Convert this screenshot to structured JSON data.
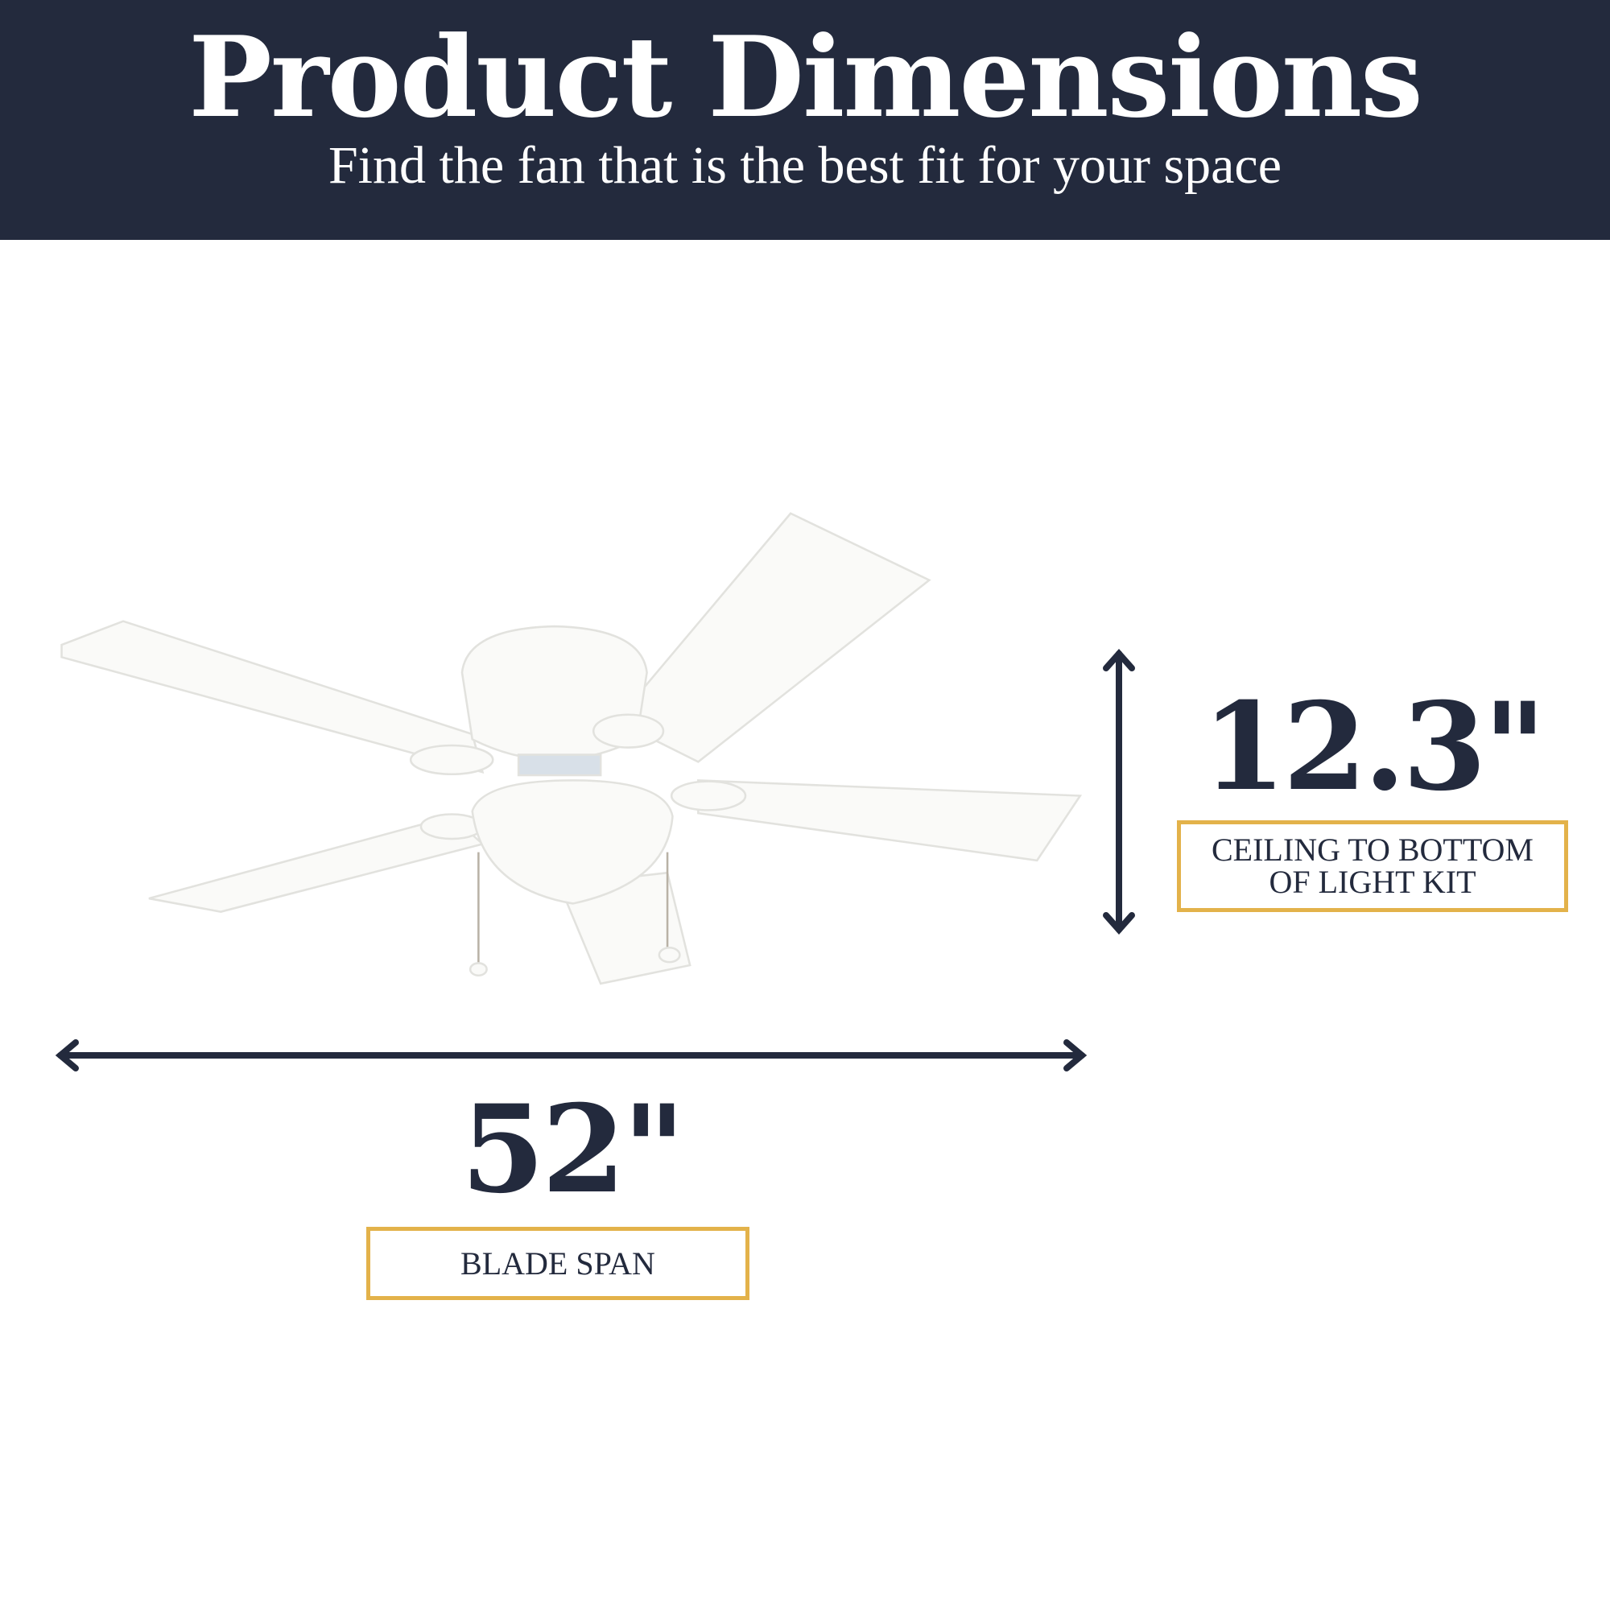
{
  "header": {
    "title": "Product Dimensions",
    "subtitle": "Find the fan that is the best fit for your space"
  },
  "dimensions": {
    "height": {
      "value": "12.3\"",
      "label_line1": "CEILING TO BOTTOM",
      "label_line2": "OF LIGHT KIT"
    },
    "span": {
      "value": "52\"",
      "label": "BLADE SPAN"
    }
  },
  "colors": {
    "navy": "#232a3d",
    "gold": "#e3b24a"
  }
}
